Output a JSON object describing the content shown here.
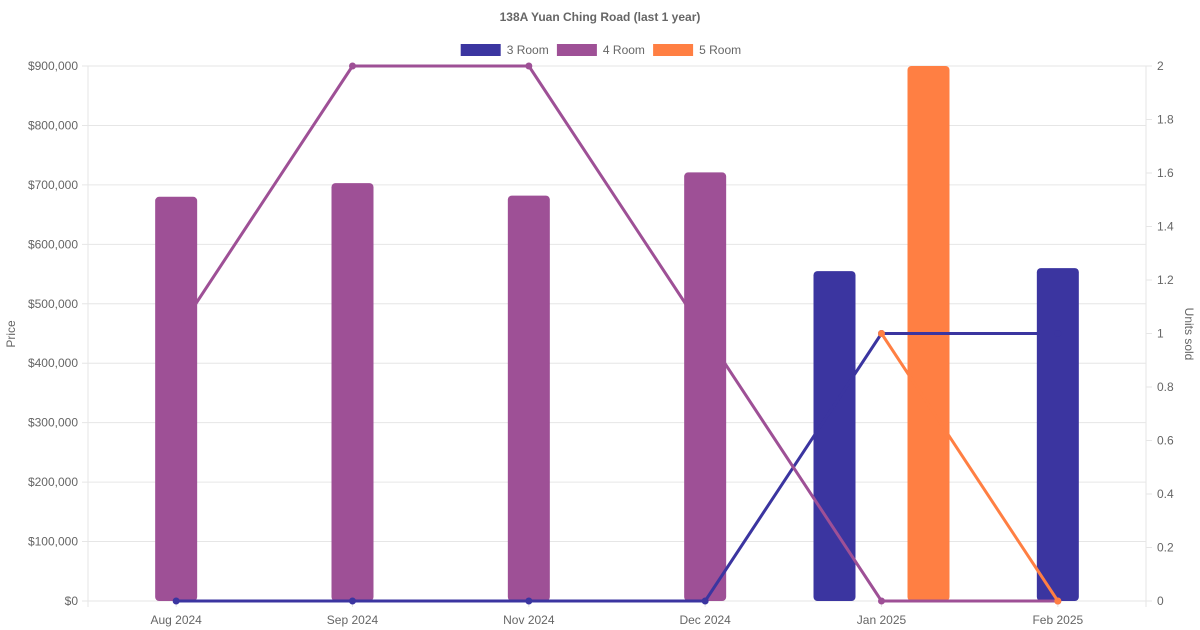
{
  "chart_data": {
    "type": "bar",
    "title": "138A Yuan Ching Road (last 1 year)",
    "categories": [
      "Aug 2024",
      "Sep 2024",
      "Nov 2024",
      "Dec 2024",
      "Jan 2025",
      "Feb 2025"
    ],
    "y_left": {
      "label": "Price",
      "range": [
        0,
        900000
      ],
      "ticks": [
        "$0",
        "$100,000",
        "$200,000",
        "$300,000",
        "$400,000",
        "$500,000",
        "$600,000",
        "$700,000",
        "$800,000",
        "$900,000"
      ]
    },
    "y_right": {
      "label": "Units sold",
      "range": [
        0,
        2
      ],
      "ticks": [
        "0",
        "0.2",
        "0.4",
        "0.6",
        "0.8",
        "1",
        "1.2",
        "1.4",
        "1.6",
        "1.8",
        "2"
      ]
    },
    "grid": true,
    "legend_position": "top",
    "series": [
      {
        "name": "3 Room",
        "color": "#3b35a0",
        "price": [
          null,
          null,
          null,
          null,
          555000,
          560000
        ],
        "units_sold": [
          0,
          0,
          0,
          0,
          1,
          1
        ]
      },
      {
        "name": "4 Room",
        "color": "#9e5096",
        "price": [
          680000,
          703000,
          682000,
          721000,
          null,
          null
        ],
        "units_sold": [
          1,
          2,
          2,
          1,
          0,
          0
        ]
      },
      {
        "name": "5 Room",
        "color": "#ff7f43",
        "price": [
          null,
          null,
          null,
          null,
          900000,
          null
        ],
        "units_sold": [
          null,
          null,
          null,
          null,
          1,
          0
        ]
      }
    ]
  }
}
